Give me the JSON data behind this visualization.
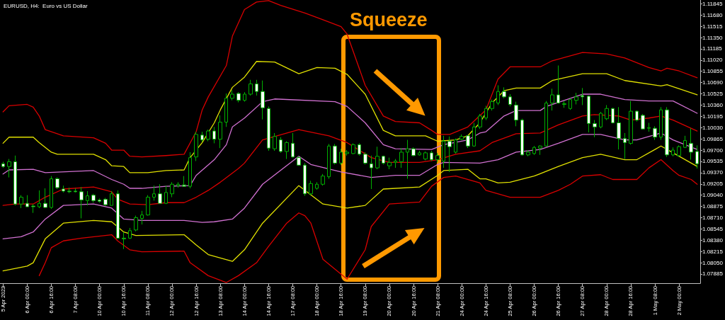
{
  "chart_data": {
    "type": "candlestick",
    "title": "EURUSD, H4:  Euro vs US Dollar",
    "annotations": [
      "Squeeze"
    ],
    "color": "#00b000",
    "marker": "none",
    "ylim": [
      1.0775,
      1.119
    ],
    "yticks": [
      1.11845,
      {
        "value": 1.1168,
        "label": "1.11680"
      },
      1.11515,
      {
        "value": 1.1135,
        "label": "1.11350"
      },
      1.11185,
      {
        "value": 1.1102,
        "label": "1.11020"
      },
      1.10855,
      {
        "value": 1.1069,
        "label": "1.10690"
      },
      1.10525,
      {
        "value": 1.1036,
        "label": "1.10360"
      },
      1.10195,
      {
        "value": 1.1003,
        "label": "1.10030"
      },
      1.09865,
      {
        "value": 1.097,
        "label": "1.09700"
      },
      1.09535,
      {
        "value": 1.0937,
        "label": "1.09370"
      },
      1.09205,
      {
        "value": 1.0904,
        "label": "1.09040"
      },
      1.08875,
      {
        "value": 1.0871,
        "label": "1.08710"
      },
      1.08545,
      {
        "value": 1.0838,
        "label": "1.08380"
      },
      1.08215,
      {
        "value": 1.0805,
        "label": "1.08050"
      },
      1.07885
    ],
    "categories": [
      "5 Apr 2023",
      null,
      null,
      null,
      "6 Apr 00:00",
      null,
      null,
      null,
      "6 Apr 16:00",
      null,
      null,
      null,
      "7 Apr 08:00",
      null,
      null,
      null,
      "10 Apr 00:00",
      null,
      null,
      null,
      "10 Apr 16:00",
      null,
      null,
      null,
      "11 Apr 08:00",
      null,
      null,
      null,
      "12 Apr 00:00",
      null,
      null,
      null,
      "12 Apr 16:00",
      null,
      null,
      null,
      "13 Apr 08:00",
      null,
      null,
      null,
      "14 Apr 00:00",
      null,
      null,
      null,
      "14 Apr 16:00",
      null,
      null,
      null,
      "17 Apr 08:00",
      null,
      null,
      null,
      "18 Apr 00:00",
      null,
      null,
      null,
      "18 Apr 16:00",
      null,
      null,
      null,
      "19 Apr 08:00",
      null,
      null,
      null,
      "20 Apr 00:00",
      null,
      null,
      null,
      "20 Apr 16:00",
      null,
      null,
      null,
      "21 Apr 08:00",
      null,
      null,
      null,
      "24 Apr 00:00",
      null,
      null,
      null,
      "24 Apr 16:00",
      null,
      null,
      null,
      "25 Apr 08:00",
      null,
      null,
      null,
      "26 Apr 00:00",
      null,
      null,
      null,
      "26 Apr 16:00",
      null,
      null,
      null,
      "27 Apr 08:00",
      null,
      null,
      null,
      "28 Apr 00:00",
      null,
      null,
      null,
      "28 Apr 16:00",
      null,
      null,
      null,
      "1 May 08:00",
      null,
      null,
      null,
      "2 May 00:00",
      null,
      null,
      null
    ],
    "ohlc": [
      [
        1.095,
        1.0953,
        1.0944,
        1.0946
      ],
      [
        1.0946,
        1.0957,
        1.093,
        1.0953
      ],
      [
        1.0953,
        1.0962,
        1.0889,
        1.0891
      ],
      [
        1.0891,
        1.0904,
        1.0885,
        1.0901
      ],
      [
        1.0892,
        1.0904,
        1.0887,
        1.0887
      ],
      [
        1.0888,
        1.0891,
        1.0878,
        1.0887
      ],
      [
        1.0887,
        1.0911,
        1.0885,
        1.0892
      ],
      [
        1.0892,
        1.0914,
        1.0885,
        1.0886
      ],
      [
        1.0886,
        1.0932,
        1.0884,
        1.0928
      ],
      [
        1.0928,
        1.093,
        1.0913,
        1.0915
      ],
      [
        1.0913,
        1.0918,
        1.0908,
        1.091
      ],
      [
        1.091,
        1.0915,
        1.0907,
        1.0909
      ],
      [
        1.091,
        1.0914,
        1.0908,
        1.0909
      ],
      [
        1.0909,
        1.0916,
        1.087,
        1.0897
      ],
      [
        1.0896,
        1.091,
        1.0889,
        1.0903
      ],
      [
        1.0904,
        1.0906,
        1.0893,
        1.0896
      ],
      [
        1.0897,
        1.0899,
        1.0893,
        1.0895
      ],
      [
        1.0898,
        1.09,
        1.0888,
        1.089
      ],
      [
        1.0889,
        1.091,
        1.0889,
        1.0906
      ],
      [
        1.0906,
        1.0911,
        1.084,
        1.0841
      ],
      [
        1.0841,
        1.085,
        1.0825,
        1.084
      ],
      [
        1.0841,
        1.0856,
        1.084,
        1.0852
      ],
      [
        1.0853,
        1.0874,
        1.0851,
        1.0871
      ],
      [
        1.087,
        1.0881,
        1.0861,
        1.0875
      ],
      [
        1.0875,
        1.0904,
        1.0874,
        1.0901
      ],
      [
        1.0901,
        1.0918,
        1.0896,
        1.0906
      ],
      [
        1.0906,
        1.092,
        1.0891,
        1.0892
      ],
      [
        1.0892,
        1.0918,
        1.0891,
        1.0908
      ],
      [
        1.0906,
        1.0923,
        1.0901,
        1.092
      ],
      [
        1.0918,
        1.0923,
        1.0915,
        1.092
      ],
      [
        1.0919,
        1.0932,
        1.0917,
        1.0917
      ],
      [
        1.0917,
        1.0967,
        1.0914,
        1.0959
      ],
      [
        1.096,
        1.0997,
        1.0954,
        1.0993
      ],
      [
        1.0992,
        1.0997,
        1.0982,
        1.0985
      ],
      [
        1.0986,
        1.1,
        1.0983,
        1.0998
      ],
      [
        1.0998,
        1.1004,
        1.098,
        1.0986
      ],
      [
        1.0986,
        1.1021,
        1.0973,
        1.1011
      ],
      [
        1.1011,
        1.1053,
        1.1004,
        1.1046
      ],
      [
        1.1046,
        1.1058,
        1.1043,
        1.1052
      ],
      [
        1.1053,
        1.1055,
        1.104,
        1.1043
      ],
      [
        1.1043,
        1.1055,
        1.1041,
        1.1052
      ],
      [
        1.1052,
        1.1073,
        1.105,
        1.1067
      ],
      [
        1.1067,
        1.1073,
        1.105,
        1.1056
      ],
      [
        1.1056,
        1.1072,
        1.1015,
        1.1032
      ],
      [
        1.1031,
        1.1034,
        1.0969,
        1.0973
      ],
      [
        1.0972,
        1.0995,
        1.0969,
        1.099
      ],
      [
        1.0985,
        1.0989,
        1.0966,
        1.0968
      ],
      [
        1.0968,
        1.0983,
        1.0957,
        1.0981
      ],
      [
        1.098,
        1.0995,
        1.0959,
        1.096
      ],
      [
        1.0959,
        1.0961,
        1.0947,
        1.0948
      ],
      [
        1.0948,
        1.0951,
        1.0903,
        1.0906
      ],
      [
        1.0906,
        1.0925,
        1.0904,
        1.0921
      ],
      [
        1.0914,
        1.0923,
        1.0912,
        1.092
      ],
      [
        1.092,
        1.0935,
        1.0918,
        1.0932
      ],
      [
        1.0931,
        1.0979,
        1.0928,
        1.0976
      ],
      [
        1.0976,
        1.0979,
        1.0949,
        1.0951
      ],
      [
        1.0951,
        1.0972,
        1.0948,
        1.0967
      ],
      [
        1.0965,
        1.097,
        1.0962,
        1.0967
      ],
      [
        1.0965,
        1.098,
        1.0964,
        1.0978
      ],
      [
        1.0978,
        1.098,
        1.0962,
        1.0964
      ],
      [
        1.0964,
        1.0967,
        1.0949,
        1.0951
      ],
      [
        1.095,
        1.0962,
        1.0913,
        1.0944
      ],
      [
        1.0944,
        1.0975,
        1.0942,
        1.0961
      ],
      [
        1.0961,
        1.0962,
        1.0949,
        1.0951
      ],
      [
        1.0947,
        1.0959,
        1.0942,
        1.0952
      ],
      [
        1.0952,
        1.0957,
        1.0944,
        1.0954
      ],
      [
        1.0953,
        1.0973,
        1.0944,
        1.0967
      ],
      [
        1.0967,
        1.0985,
        1.0928,
        1.0972
      ],
      [
        1.0972,
        1.0974,
        1.0961,
        1.0962
      ],
      [
        1.0963,
        1.0969,
        1.0962,
        1.0966
      ],
      [
        1.0957,
        1.0968,
        1.0955,
        1.0966
      ],
      [
        1.0966,
        1.0969,
        1.0954,
        1.0956
      ],
      [
        1.0956,
        1.0966,
        1.0952,
        1.0962
      ],
      [
        1.0954,
        1.0991,
        1.0944,
        1.0983
      ],
      [
        1.0983,
        1.099,
        1.0938,
        1.0975
      ],
      [
        1.0967,
        1.0987,
        1.0965,
        1.0985
      ],
      [
        1.0986,
        1.0993,
        1.0985,
        1.099
      ],
      [
        1.0991,
        1.0992,
        1.0973,
        1.0976
      ],
      [
        1.0976,
        1.101,
        1.0975,
        1.1004
      ],
      [
        1.1004,
        1.1023,
        1.1001,
        1.102
      ],
      [
        1.1017,
        1.1035,
        1.1014,
        1.1031
      ],
      [
        1.1031,
        1.1044,
        1.1028,
        1.1041
      ],
      [
        1.1039,
        1.1065,
        1.1036,
        1.1056
      ],
      [
        1.1056,
        1.1062,
        1.1046,
        1.1048
      ],
      [
        1.1048,
        1.1052,
        1.1034,
        1.1037
      ],
      [
        1.1036,
        1.1041,
        1.1005,
        1.1014
      ],
      [
        1.1014,
        1.1016,
        1.0962,
        1.0963
      ],
      [
        1.0963,
        1.097,
        1.0961,
        1.0967
      ],
      [
        1.0965,
        1.0976,
        1.0963,
        1.0974
      ],
      [
        1.0973,
        1.0977,
        1.0963,
        1.0976
      ],
      [
        1.0976,
        1.1042,
        1.0975,
        1.1039
      ],
      [
        1.1039,
        1.106,
        1.1028,
        1.1051
      ],
      [
        1.1051,
        1.1094,
        1.1038,
        1.1039
      ],
      [
        1.1037,
        1.1042,
        1.1032,
        1.1038
      ],
      [
        1.1031,
        1.1046,
        1.1029,
        1.1044
      ],
      [
        1.1043,
        1.1054,
        1.1037,
        1.1048
      ],
      [
        1.105,
        1.1061,
        1.1036,
        1.1048
      ],
      [
        1.1049,
        1.105,
        1.0996,
        1.1009
      ],
      [
        1.1009,
        1.1014,
        1.0989,
        1.1004
      ],
      [
        1.1004,
        1.1026,
        1.1002,
        1.1024
      ],
      [
        1.1016,
        1.1036,
        1.1014,
        1.1031
      ],
      [
        1.1031,
        1.1032,
        1.1009,
        1.101
      ],
      [
        1.101,
        1.1033,
        1.0971,
        1.0987
      ],
      [
        1.0987,
        1.0995,
        1.0957,
        1.0981
      ],
      [
        1.098,
        1.1042,
        1.0978,
        1.1027
      ],
      [
        1.1027,
        1.1028,
        1.1012,
        1.1014
      ],
      [
        1.1021,
        1.1023,
        1.1,
        1.1001
      ],
      [
        1.1002,
        1.101,
        1.0997,
        1.1003
      ],
      [
        1.1002,
        1.1005,
        1.0985,
        1.0989
      ],
      [
        1.0989,
        1.1033,
        1.0985,
        1.1029
      ],
      [
        1.1029,
        1.1033,
        1.096,
        1.0963
      ],
      [
        1.0963,
        1.0974,
        1.0961,
        1.097
      ],
      [
        1.0962,
        1.0977,
        1.096,
        1.0975
      ],
      [
        1.0974,
        1.0991,
        1.0973,
        1.0984
      ],
      [
        1.098,
        1.1002,
        1.0956,
        1.0967
      ],
      [
        1.0968,
        1.0977,
        1.0943,
        1.095
      ]
    ],
    "series": [
      {
        "type": "line",
        "color": "#d80000",
        "values": [
          1.1026,
          1.1035,
          null,
          null,
          1.1037,
          1.1033,
          1.102,
          1.1,
          null,
          null,
          1.0991,
          null,
          null,
          null,
          null,
          1.0988,
          null,
          1.098,
          1.097,
          null,
          1.097,
          1.0961,
          null,
          1.096,
          null,
          null,
          null,
          1.0962,
          null,
          null,
          1.0964,
          null,
          1.0997,
          1.1029,
          1.1048,
          null,
          null,
          1.1094,
          1.1137,
          null,
          1.1176,
          null,
          1.1187,
          null,
          1.1189,
          null,
          1.1182,
          null,
          null,
          null,
          1.1171,
          null,
          null,
          1.1161,
          null,
          null,
          1.1151,
          1.114,
          1.1115,
          null,
          1.1065,
          null,
          null,
          1.102,
          null,
          1.1012,
          null,
          null,
          null,
          1.101,
          null,
          1.0999,
          1.0993,
          null,
          1.0993,
          null,
          null,
          1.1004,
          null,
          null,
          1.1029,
          null,
          1.1074,
          null,
          1.1092,
          null,
          null,
          null,
          null,
          1.1092,
          null,
          1.1101,
          null,
          null,
          null,
          null,
          1.1113,
          null,
          null,
          null,
          1.1111,
          null,
          null,
          1.1105,
          null,
          null,
          null,
          1.1091,
          null,
          1.1086,
          1.109,
          null,
          1.1086,
          null,
          null,
          1.1076
        ]
      },
      {
        "type": "line",
        "color": "#e0e000",
        "values": [
          1.098,
          1.0989,
          null,
          null,
          null,
          1.0989,
          1.0981,
          null,
          1.0967,
          1.0964,
          null,
          null,
          null,
          null,
          null,
          1.0964,
          null,
          1.0956,
          1.0947,
          null,
          1.0946,
          1.0937,
          null,
          null,
          1.0937,
          null,
          null,
          1.094,
          null,
          null,
          1.0941,
          1.0959,
          null,
          1.0981,
          null,
          1.101,
          1.1029,
          null,
          1.1062,
          null,
          1.1077,
          null,
          1.11,
          null,
          null,
          1.1099,
          null,
          null,
          null,
          1.1082,
          null,
          null,
          1.1091,
          null,
          null,
          1.109,
          null,
          1.1081,
          null,
          null,
          1.1052,
          null,
          null,
          1.0999,
          null,
          1.0991,
          null,
          null,
          null,
          null,
          1.0991,
          null,
          1.0983,
          null,
          null,
          1.0985,
          null,
          1.0991,
          null,
          1.101,
          null,
          1.1039,
          null,
          1.1057,
          null,
          1.1061,
          null,
          null,
          null,
          1.1061,
          null,
          1.1072,
          null,
          null,
          null,
          null,
          1.1082,
          null,
          null,
          null,
          1.1082,
          null,
          null,
          1.1072,
          null,
          null,
          null,
          null,
          null,
          1.1064,
          1.1066,
          null,
          null,
          null,
          null,
          1.1051
        ]
      },
      {
        "type": "line",
        "color": "#d070d0",
        "values": [
          1.0935,
          1.0941,
          null,
          null,
          null,
          1.0942,
          null,
          1.0937,
          null,
          null,
          null,
          null,
          null,
          null,
          null,
          1.094,
          null,
          null,
          1.0927,
          null,
          1.092,
          1.0914,
          null,
          1.0914,
          null,
          null,
          null,
          1.0917,
          null,
          null,
          null,
          1.0918,
          1.0933,
          null,
          null,
          1.0956,
          null,
          1.0978,
          1.1004,
          null,
          1.1017,
          null,
          null,
          1.1041,
          null,
          1.1045,
          null,
          null,
          null,
          null,
          null,
          null,
          null,
          null,
          null,
          1.1041,
          null,
          1.1034,
          null,
          null,
          1.101,
          null,
          null,
          1.0978,
          null,
          1.0972,
          null,
          null,
          null,
          null,
          null,
          1.0971,
          null,
          1.0978,
          null,
          null,
          null,
          1.0985,
          null,
          1.0995,
          1.0997,
          null,
          null,
          1.102,
          null,
          1.1028,
          null,
          null,
          null,
          1.1028,
          1.1034,
          null,
          null,
          null,
          1.1046,
          null,
          1.1052,
          null,
          null,
          1.1052,
          null,
          null,
          null,
          1.1044,
          null,
          null,
          null,
          1.1042,
          null,
          null,
          null,
          1.1042,
          null,
          null,
          null,
          1.1024
        ]
      },
      {
        "type": "line",
        "color": "#d80000",
        "values": [
          1.0889,
          null,
          1.0891,
          null,
          null,
          1.0891,
          null,
          1.0901,
          null,
          null,
          1.0913,
          null,
          null,
          null,
          null,
          1.0916,
          null,
          null,
          1.0909,
          1.0898,
          null,
          1.0891,
          null,
          null,
          1.089,
          null,
          null,
          1.0893,
          null,
          null,
          1.0893,
          null,
          1.0901,
          null,
          1.0911,
          null,
          1.0923,
          null,
          null,
          1.0943,
          1.0951,
          null,
          null,
          1.0985,
          null,
          null,
          null,
          null,
          null,
          1.1,
          null,
          null,
          null,
          null,
          1.0991,
          null,
          null,
          1.0981,
          null,
          null,
          null,
          1.0959,
          null,
          null,
          1.0952,
          null,
          null,
          null,
          null,
          1.0952,
          null,
          null,
          1.0956,
          null,
          null,
          1.0964,
          null,
          null,
          null,
          1.0969,
          null,
          1.0981,
          null,
          null,
          null,
          1.0994,
          null,
          null,
          null,
          1.0995,
          null,
          null,
          1.1007,
          null,
          null,
          null,
          1.102,
          null,
          1.1022,
          null,
          null,
          null,
          1.102,
          null,
          1.1014,
          null,
          null,
          1.1017,
          null,
          1.102,
          null,
          1.1014,
          null,
          null,
          null,
          1.0998
        ]
      },
      {
        "type": "line",
        "color": "#d070d0",
        "values": [
          1.084,
          null,
          null,
          1.0843,
          null,
          1.085,
          null,
          1.0869,
          null,
          null,
          1.0889,
          null,
          null,
          null,
          null,
          1.0891,
          null,
          null,
          1.0885,
          null,
          1.0869,
          null,
          null,
          1.0867,
          null,
          null,
          null,
          null,
          null,
          null,
          1.0867,
          null,
          null,
          1.0864,
          null,
          1.0865,
          null,
          null,
          1.0869,
          null,
          1.0885,
          null,
          null,
          1.092,
          null,
          null,
          null,
          null,
          null,
          1.0961,
          null,
          1.0949,
          null,
          null,
          null,
          null,
          1.0938,
          null,
          null,
          null,
          null,
          1.093,
          null,
          null,
          null,
          1.0933,
          null,
          null,
          null,
          1.0933,
          null,
          null,
          1.0949,
          1.0952,
          null,
          null,
          null,
          null,
          null,
          1.0951,
          null,
          null,
          1.0956,
          null,
          null,
          1.0967,
          null,
          null,
          null,
          1.0971,
          null,
          null,
          1.098,
          null,
          null,
          null,
          1.0993,
          null,
          null,
          1.0993,
          null,
          null,
          null,
          1.0985,
          null,
          1.0985,
          null,
          null,
          null,
          1.0995,
          null,
          1.0985,
          null,
          null,
          null,
          1.0971
        ]
      },
      {
        "type": "line",
        "color": "#e0e000",
        "values": [
          1.0793,
          null,
          null,
          null,
          1.08,
          1.0805,
          null,
          1.084,
          null,
          null,
          1.0863,
          null,
          null,
          null,
          null,
          1.0867,
          null,
          null,
          1.0865,
          null,
          1.085,
          null,
          1.0845,
          null,
          null,
          null,
          null,
          null,
          null,
          null,
          1.0846,
          null,
          1.0831,
          null,
          1.0817,
          null,
          null,
          null,
          1.0807,
          null,
          1.0824,
          null,
          null,
          1.0863,
          null,
          null,
          null,
          null,
          null,
          1.0918,
          null,
          null,
          null,
          1.0891,
          null,
          null,
          null,
          1.0885,
          null,
          null,
          1.0889,
          null,
          null,
          1.0913,
          null,
          null,
          null,
          null,
          null,
          1.0916,
          null,
          null,
          1.0933,
          1.094,
          null,
          null,
          null,
          1.0942,
          null,
          1.0928,
          1.0928,
          null,
          1.0922,
          null,
          1.0923,
          null,
          null,
          null,
          1.0932,
          null,
          null,
          null,
          1.0946,
          null,
          null,
          null,
          1.0959,
          null,
          null,
          1.0964,
          null,
          null,
          null,
          1.0956,
          null,
          1.0956,
          null,
          null,
          1.0971,
          1.0976,
          null,
          1.0966,
          null,
          null,
          null,
          1.0946
        ]
      },
      {
        "type": "line",
        "color": "#d80000",
        "values": [
          null,
          null,
          null,
          null,
          null,
          null,
          1.0786,
          1.0805,
          1.0827,
          null,
          1.0837,
          null,
          null,
          1.0841,
          null,
          null,
          null,
          null,
          1.0846,
          1.0837,
          null,
          1.0824,
          null,
          1.0821,
          null,
          null,
          null,
          null,
          null,
          null,
          1.0822,
          1.0805,
          null,
          null,
          1.0786,
          null,
          null,
          1.0776,
          null,
          1.0786,
          null,
          null,
          1.0805,
          null,
          1.0829,
          null,
          null,
          1.0863,
          null,
          1.0878,
          1.0874,
          1.0863,
          null,
          1.081,
          null,
          null,
          null,
          1.0781,
          null,
          null,
          1.0824,
          1.0858,
          null,
          null,
          1.0891,
          null,
          null,
          null,
          null,
          1.0894,
          null,
          1.0917,
          null,
          1.093,
          null,
          1.0932,
          null,
          null,
          null,
          1.0922,
          1.0911,
          null,
          null,
          null,
          1.0901,
          null,
          null,
          null,
          null,
          1.0901,
          null,
          null,
          1.0911,
          null,
          1.092,
          null,
          1.0932,
          null,
          null,
          1.0934,
          null,
          1.0927,
          null,
          null,
          null,
          1.0927,
          null,
          1.0944,
          null,
          1.0956,
          null,
          1.094,
          1.0933,
          null,
          1.0927,
          1.092
        ]
      }
    ]
  }
}
